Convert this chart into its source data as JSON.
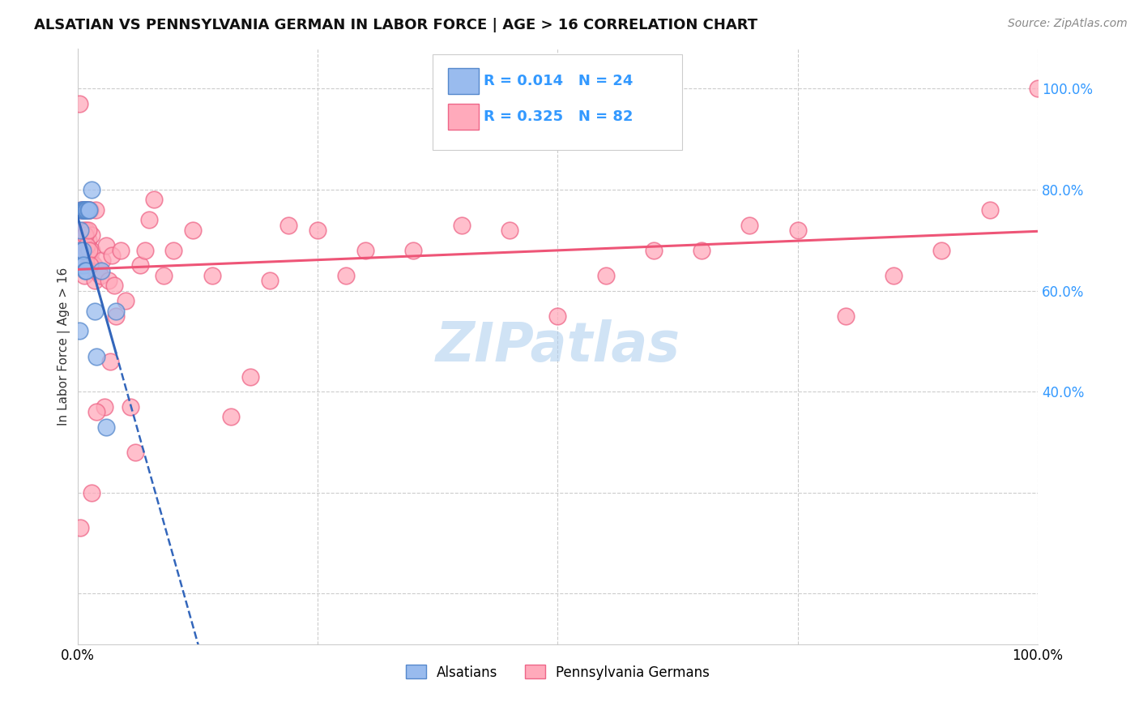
{
  "title": "ALSATIAN VS PENNSYLVANIA GERMAN IN LABOR FORCE | AGE > 16 CORRELATION CHART",
  "source": "Source: ZipAtlas.com",
  "ylabel": "In Labor Force | Age > 16",
  "legend_label1": "Alsatians",
  "legend_label2": "Pennsylvania Germans",
  "R1": "0.014",
  "N1": "24",
  "R2": "0.325",
  "N2": "82",
  "color_alsatian_fill": "#99BBEE",
  "color_alsatian_edge": "#5588CC",
  "color_pa_fill": "#FFAABB",
  "color_pa_edge": "#EE6688",
  "color_line_blue": "#3366BB",
  "color_line_pink": "#EE5577",
  "background_color": "#FFFFFF",
  "grid_color": "#CCCCCC",
  "watermark": "ZIPatlas",
  "watermark_color": "#AACCEE",
  "tick_color": "#3399FF",
  "alsatian_x": [
    0.002,
    0.003,
    0.003,
    0.004,
    0.004,
    0.005,
    0.005,
    0.006,
    0.006,
    0.007,
    0.007,
    0.008,
    0.008,
    0.009,
    0.009,
    0.01,
    0.011,
    0.012,
    0.015,
    0.018,
    0.02,
    0.025,
    0.03,
    0.04
  ],
  "alsatian_y": [
    0.52,
    0.72,
    0.68,
    0.76,
    0.65,
    0.76,
    0.68,
    0.76,
    0.65,
    0.76,
    0.76,
    0.76,
    0.64,
    0.76,
    0.64,
    0.76,
    0.76,
    0.76,
    0.8,
    0.56,
    0.47,
    0.64,
    0.33,
    0.56
  ],
  "pa_x": [
    0.002,
    0.004,
    0.005,
    0.006,
    0.006,
    0.007,
    0.007,
    0.008,
    0.008,
    0.009,
    0.009,
    0.01,
    0.01,
    0.011,
    0.011,
    0.012,
    0.012,
    0.013,
    0.013,
    0.014,
    0.015,
    0.015,
    0.016,
    0.017,
    0.018,
    0.019,
    0.02,
    0.022,
    0.024,
    0.026,
    0.028,
    0.03,
    0.032,
    0.034,
    0.036,
    0.038,
    0.04,
    0.045,
    0.05,
    0.055,
    0.06,
    0.065,
    0.07,
    0.075,
    0.08,
    0.09,
    0.1,
    0.12,
    0.14,
    0.16,
    0.18,
    0.2,
    0.22,
    0.25,
    0.28,
    0.3,
    0.35,
    0.4,
    0.45,
    0.5,
    0.55,
    0.6,
    0.65,
    0.7,
    0.75,
    0.8,
    0.85,
    0.9,
    0.95,
    1.0,
    0.005,
    0.006,
    0.003,
    0.007,
    0.008,
    0.009,
    0.01,
    0.011,
    0.012,
    0.013,
    0.015,
    0.02
  ],
  "pa_y": [
    0.97,
    0.76,
    0.65,
    0.72,
    0.68,
    0.76,
    0.63,
    0.76,
    0.7,
    0.76,
    0.72,
    0.76,
    0.68,
    0.76,
    0.7,
    0.66,
    0.76,
    0.65,
    0.76,
    0.66,
    0.71,
    0.68,
    0.65,
    0.65,
    0.62,
    0.76,
    0.64,
    0.64,
    0.63,
    0.66,
    0.37,
    0.69,
    0.62,
    0.46,
    0.67,
    0.61,
    0.55,
    0.68,
    0.58,
    0.37,
    0.28,
    0.65,
    0.68,
    0.74,
    0.78,
    0.63,
    0.68,
    0.72,
    0.63,
    0.35,
    0.43,
    0.62,
    0.73,
    0.72,
    0.63,
    0.68,
    0.68,
    0.73,
    0.72,
    0.55,
    0.63,
    0.68,
    0.68,
    0.73,
    0.72,
    0.55,
    0.63,
    0.68,
    0.76,
    1.0,
    0.76,
    0.76,
    0.13,
    0.76,
    0.71,
    0.76,
    0.69,
    0.72,
    0.68,
    0.65,
    0.2,
    0.36
  ],
  "right_yticks": [
    0.4,
    0.6,
    0.8,
    1.0
  ],
  "right_ylabels": [
    "40.0%",
    "60.0%",
    "80.0%",
    "100.0%"
  ],
  "xlim": [
    0.0,
    1.0
  ],
  "ylim": [
    -0.1,
    1.08
  ]
}
